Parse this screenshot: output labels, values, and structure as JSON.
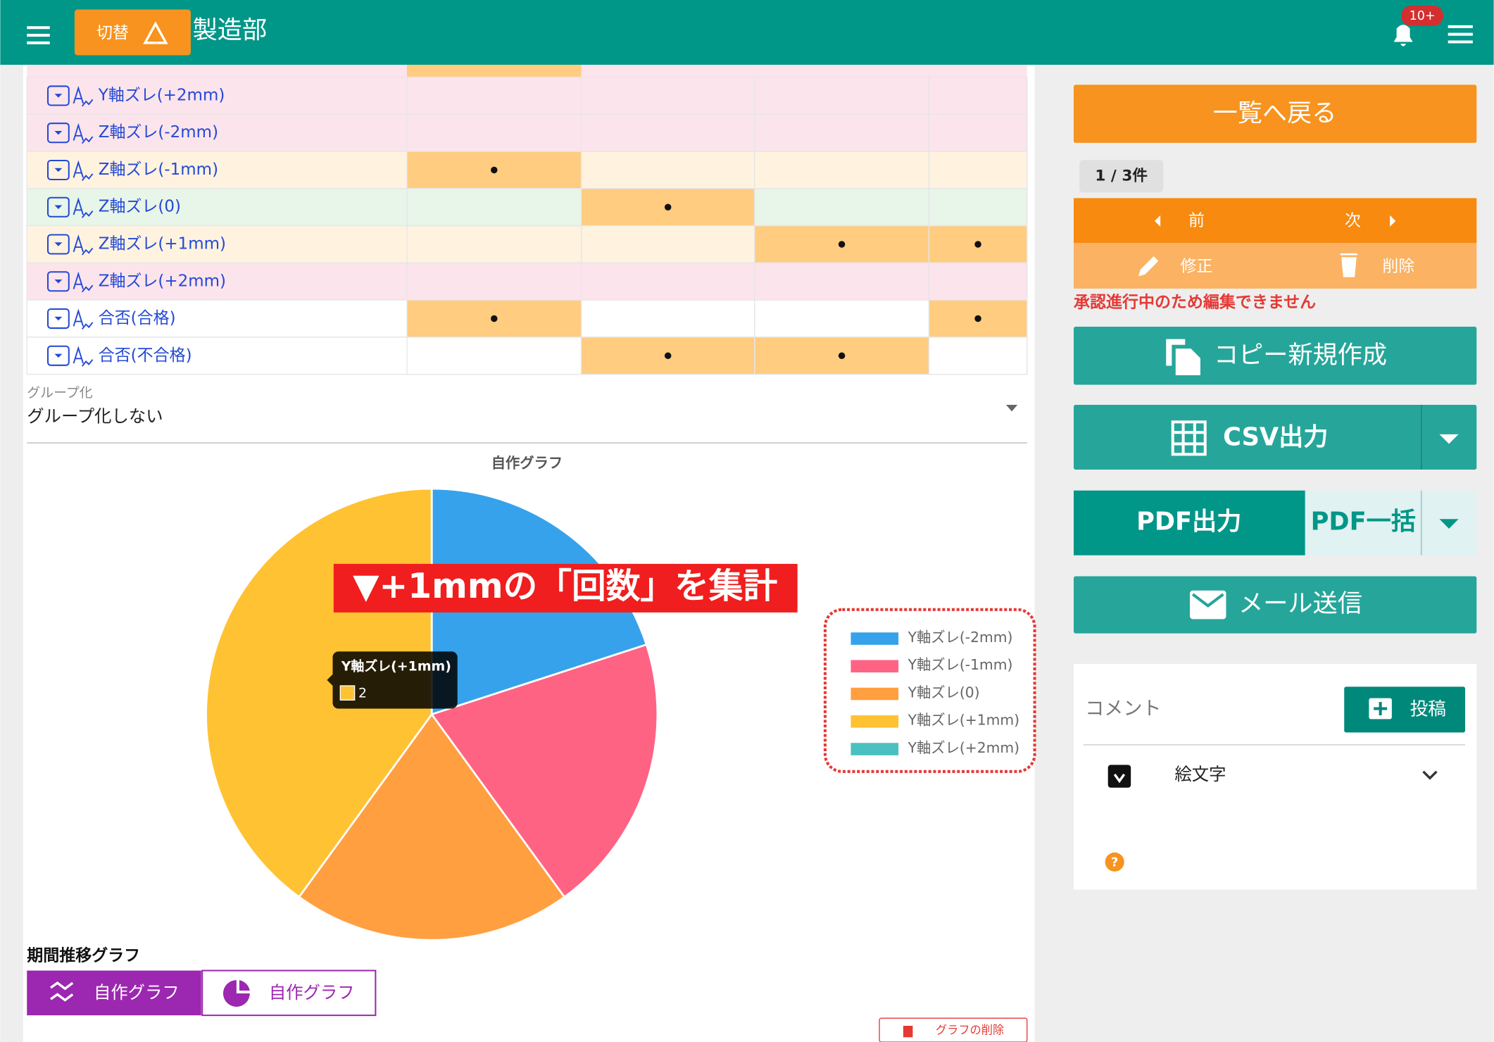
{
  "header": {
    "switch": "切替",
    "title": "製造部",
    "badge": "10+"
  },
  "table": {
    "rows": [
      {
        "label": "Y軸ズレ(+2mm)",
        "color": "#fce4ec",
        "marks": [
          false,
          false,
          false,
          false
        ]
      },
      {
        "label": "Z軸ズレ(-2mm)",
        "color": "#fce4ec",
        "marks": [
          false,
          false,
          false,
          false
        ]
      },
      {
        "label": "Z軸ズレ(-1mm)",
        "color": "#fff3e0",
        "marks": [
          true,
          false,
          false,
          false
        ]
      },
      {
        "label": "Z軸ズレ(0)",
        "color": "#e8f5e9",
        "marks": [
          false,
          true,
          false,
          false
        ]
      },
      {
        "label": "Z軸ズレ(+1mm)",
        "color": "#fff3e0",
        "marks": [
          false,
          false,
          true,
          true
        ]
      },
      {
        "label": "Z軸ズレ(+2mm)",
        "color": "#fce4ec",
        "marks": [
          false,
          false,
          false,
          false
        ]
      },
      {
        "label": "合否(合格)",
        "color": "#ffffff",
        "marks": [
          true,
          false,
          false,
          true
        ]
      },
      {
        "label": "合否(不合格)",
        "color": "#ffffff",
        "marks": [
          false,
          true,
          true,
          false
        ]
      }
    ]
  },
  "grouping": {
    "label": "グループ化",
    "value": "グループ化しない"
  },
  "chart_data": {
    "type": "pie",
    "title": "自作グラフ",
    "categories": [
      "Y軸ズレ(-2mm)",
      "Y軸ズレ(-1mm)",
      "Y軸ズレ(0)",
      "Y軸ズレ(+1mm)",
      "Y軸ズレ(+2mm)"
    ],
    "values": [
      1,
      1,
      1,
      2,
      0
    ],
    "colors": [
      "#36a2eb",
      "#ff6384",
      "#ff9f40",
      "#ffc233",
      "#4bc0c0"
    ],
    "annotation": "▼+1mmの「回数」を集計",
    "legend": "right"
  },
  "period": {
    "title": "期間推移グラフ",
    "tabs": [
      "自作グラフ",
      "自作グラフ"
    ],
    "delete": "グラフの削除"
  },
  "sidebar": {
    "back": "一覧へ戻る",
    "count": "1 / 3件",
    "prev": "前",
    "next": "次",
    "edit": "修正",
    "remove": "削除",
    "warning": "承認進行中のため編集できません",
    "copy": "コピー新規作成",
    "csv": "CSV出力",
    "pdf": "PDF出力",
    "pdf_all": "PDF一括",
    "mail": "メール送信",
    "comment": "コメント",
    "post": "投稿",
    "emoji": "絵文字"
  }
}
